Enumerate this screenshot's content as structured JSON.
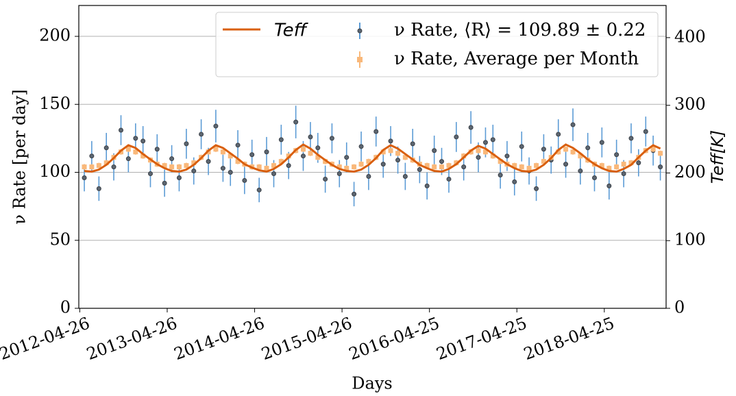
{
  "chart_data": {
    "type": "line",
    "xlabel": "Days",
    "ylabel": "ν Rate [per day]",
    "y2label": "Teff[K]",
    "xlim": [
      "2012-04-22",
      "2019-01-08"
    ],
    "xticks": [
      "2012-04-26",
      "2013-04-26",
      "2014-04-26",
      "2015-04-26",
      "2016-04-25",
      "2017-04-25",
      "2018-04-25"
    ],
    "ylim": [
      0,
      222.7
    ],
    "yticks": [
      0,
      50,
      100,
      150,
      200
    ],
    "y2lim": [
      0,
      447.5
    ],
    "y2ticks": [
      0,
      100,
      200,
      300,
      400
    ],
    "grid": true,
    "legend": "upper right",
    "x": [
      "2012-05-15",
      "2012-06-15",
      "2012-07-15",
      "2012-08-15",
      "2012-09-15",
      "2012-10-15",
      "2012-11-15",
      "2012-12-15",
      "2013-01-15",
      "2013-02-15",
      "2013-03-15",
      "2013-04-15",
      "2013-05-15",
      "2013-06-15",
      "2013-07-15",
      "2013-08-15",
      "2013-09-15",
      "2013-10-15",
      "2013-11-15",
      "2013-12-15",
      "2014-01-15",
      "2014-02-15",
      "2014-03-15",
      "2014-04-15",
      "2014-05-15",
      "2014-06-15",
      "2014-07-15",
      "2014-08-15",
      "2014-09-15",
      "2014-10-15",
      "2014-11-15",
      "2014-12-15",
      "2015-01-15",
      "2015-02-15",
      "2015-03-15",
      "2015-04-15",
      "2015-05-15",
      "2015-06-15",
      "2015-07-15",
      "2015-08-15",
      "2015-09-15",
      "2015-10-15",
      "2015-11-15",
      "2015-12-15",
      "2016-01-15",
      "2016-02-15",
      "2016-03-15",
      "2016-04-15",
      "2016-05-15",
      "2016-06-15",
      "2016-07-15",
      "2016-08-15",
      "2016-09-15",
      "2016-10-15",
      "2016-11-15",
      "2016-12-15",
      "2017-01-15",
      "2017-02-15",
      "2017-03-15",
      "2017-04-15",
      "2017-05-15",
      "2017-06-15",
      "2017-07-15",
      "2017-08-15",
      "2017-09-15",
      "2017-10-15",
      "2017-11-15",
      "2017-12-15",
      "2018-01-15",
      "2018-02-15",
      "2018-03-15",
      "2018-04-15",
      "2018-05-15",
      "2018-06-15",
      "2018-07-15",
      "2018-08-15",
      "2018-09-15",
      "2018-10-15",
      "2018-11-15",
      "2018-12-15"
    ],
    "series": [
      {
        "name": "ν Rate, ⟨R⟩ = 109.89 ± 0.22",
        "kind": "errorbar",
        "color": "#5b9bd5",
        "marker_color": "#5d6670",
        "values": [
          96,
          112,
          88,
          118,
          104,
          131,
          110,
          125,
          123,
          99,
          117,
          92,
          110,
          96,
          121,
          101,
          128,
          108,
          134,
          103,
          100,
          120,
          94,
          113,
          87,
          115,
          99,
          124,
          105,
          137,
          112,
          126,
          118,
          95,
          125,
          99,
          111,
          84,
          119,
          97,
          130,
          106,
          123,
          109,
          97,
          121,
          102,
          90,
          116,
          108,
          95,
          126,
          104,
          133,
          111,
          122,
          124,
          98,
          112,
          93,
          119,
          101,
          88,
          117,
          109,
          128,
          106,
          135,
          101,
          118,
          96,
          122,
          90,
          113,
          99,
          125,
          107,
          130,
          116,
          104
        ],
        "errors": [
          10,
          11,
          9,
          11,
          10,
          11,
          10,
          11,
          11,
          10,
          11,
          10,
          10,
          10,
          11,
          10,
          11,
          10,
          12,
          10,
          10,
          11,
          10,
          11,
          9,
          11,
          10,
          11,
          10,
          12,
          11,
          11,
          11,
          10,
          11,
          10,
          11,
          9,
          11,
          10,
          11,
          10,
          11,
          10,
          10,
          11,
          10,
          10,
          11,
          10,
          10,
          11,
          10,
          12,
          11,
          11,
          11,
          10,
          11,
          10,
          11,
          10,
          9,
          11,
          10,
          11,
          10,
          12,
          10,
          11,
          10,
          11,
          10,
          11,
          10,
          11,
          10,
          11,
          11,
          10
        ]
      },
      {
        "name": "ν Rate, Average per Month",
        "kind": "errorbar-square",
        "color": "#f9b87a",
        "values": [
          104,
          104,
          105,
          107,
          111,
          115,
          117,
          115,
          112,
          109,
          106,
          105,
          104,
          104,
          105,
          107,
          111,
          115,
          117,
          115,
          112,
          108,
          106,
          104,
          104,
          103,
          105,
          108,
          112,
          116,
          117,
          114,
          111,
          108,
          106,
          104,
          103,
          104,
          106,
          108,
          111,
          115,
          116,
          114,
          111,
          109,
          106,
          105,
          104,
          104,
          105,
          107,
          112,
          115,
          116,
          115,
          112,
          108,
          106,
          105,
          104,
          103,
          105,
          108,
          111,
          115,
          117,
          115,
          112,
          109,
          106,
          105,
          103,
          104,
          106,
          107,
          111,
          116,
          117,
          114
        ],
        "errors": [
          2,
          2,
          2,
          2,
          2,
          2,
          2,
          2,
          2,
          2,
          2,
          2,
          2,
          2,
          2,
          2,
          2,
          2,
          2,
          2,
          2,
          2,
          2,
          2,
          2,
          2,
          2,
          2,
          2,
          2,
          2,
          2,
          2,
          2,
          2,
          2,
          2,
          2,
          2,
          2,
          2,
          2,
          2,
          2,
          2,
          2,
          2,
          2,
          2,
          2,
          2,
          2,
          2,
          2,
          2,
          2,
          2,
          2,
          2,
          2,
          2,
          2,
          2,
          2,
          2,
          2,
          2,
          2,
          2,
          2,
          2,
          2,
          2,
          2,
          2,
          2,
          2,
          2,
          2,
          2
        ]
      },
      {
        "name": "Teff",
        "kind": "line",
        "axis": "y2",
        "color": "#d95f0e",
        "values": [
          203,
          202,
          205,
          212,
          222,
          233,
          241,
          237,
          228,
          220,
          213,
          207,
          203,
          202,
          205,
          212,
          222,
          233,
          241,
          237,
          229,
          221,
          213,
          208,
          204,
          202,
          206,
          213,
          223,
          234,
          242,
          236,
          227,
          219,
          212,
          206,
          203,
          202,
          205,
          212,
          222,
          234,
          241,
          236,
          228,
          220,
          212,
          207,
          203,
          202,
          206,
          213,
          223,
          233,
          240,
          236,
          228,
          220,
          213,
          207,
          203,
          202,
          205,
          212,
          222,
          234,
          242,
          237,
          229,
          220,
          213,
          207,
          203,
          202,
          206,
          212,
          223,
          233,
          241,
          236
        ]
      }
    ]
  }
}
